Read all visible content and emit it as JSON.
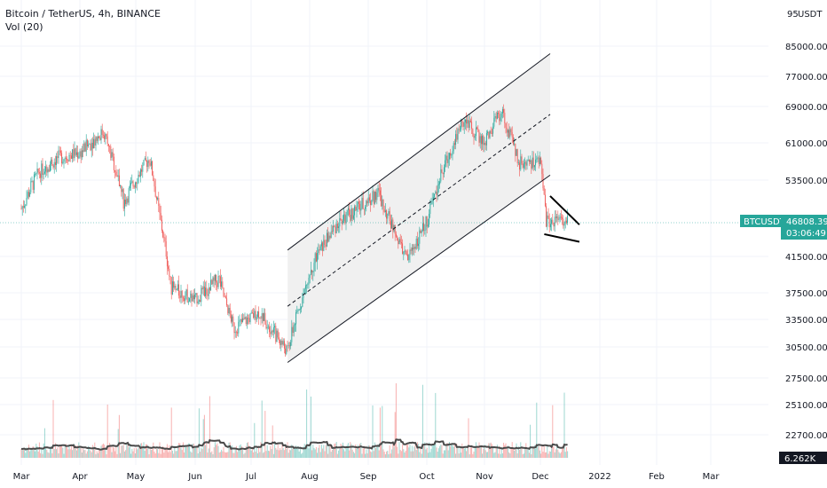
{
  "header": {
    "symbol_line": "Bitcoin / TetherUS, 4h, BINANCE",
    "indicator_line": "Vol (20)"
  },
  "axis": {
    "currency_label": "USDT",
    "currency_prefix": "95",
    "price_ticks": [
      "85000.00",
      "77000.00",
      "69000.00",
      "61000.00",
      "53500.00",
      "41500.00",
      "37500.00",
      "33500.00",
      "30500.00",
      "27500.00",
      "25100.00",
      "22700.00"
    ],
    "time_ticks": [
      "Mar",
      "Apr",
      "May",
      "Jun",
      "Jul",
      "Aug",
      "Sep",
      "Oct",
      "Nov",
      "Dec",
      "2022",
      "Feb",
      "Mar"
    ]
  },
  "badges": {
    "symbol": "BTCUSDT",
    "price": "46808.39",
    "countdown": "03:06:49",
    "volume": "6.262K"
  },
  "colors": {
    "up": "#26a69a",
    "down": "#ef5350",
    "badge": "#26a69a",
    "channel_fill": "#f0f0f0",
    "volume_ma": "#4a4a4a"
  },
  "chart_data": {
    "type": "candlestick",
    "symbol": "BTCUSDT",
    "timeframe": "4h",
    "exchange": "BINANCE",
    "last_price": 46808.39,
    "last_volume": "6.262K",
    "ylim": [
      20000,
      95000
    ],
    "x_categories": [
      "Mar",
      "Apr",
      "May",
      "Jun",
      "Jul",
      "Aug",
      "Sep",
      "Oct",
      "Nov",
      "Dec",
      "2022",
      "Feb",
      "Mar"
    ],
    "close_path": [
      {
        "t": "Mar 1",
        "price": 49000
      },
      {
        "t": "Mar 10",
        "price": 55000
      },
      {
        "t": "Mar 20",
        "price": 58000
      },
      {
        "t": "Apr 1",
        "price": 59000
      },
      {
        "t": "Apr 14",
        "price": 63500
      },
      {
        "t": "Apr 25",
        "price": 50000
      },
      {
        "t": "May 8",
        "price": 58000
      },
      {
        "t": "May 12",
        "price": 50000
      },
      {
        "t": "May 19",
        "price": 38000
      },
      {
        "t": "Jun 1",
        "price": 36500
      },
      {
        "t": "Jun 14",
        "price": 39000
      },
      {
        "t": "Jun 22",
        "price": 32500
      },
      {
        "t": "Jul 5",
        "price": 34500
      },
      {
        "t": "Jul 20",
        "price": 30000
      },
      {
        "t": "Aug 1",
        "price": 40000
      },
      {
        "t": "Aug 15",
        "price": 46500
      },
      {
        "t": "Sep 6",
        "price": 51500
      },
      {
        "t": "Sep 21",
        "price": 41000
      },
      {
        "t": "Oct 1",
        "price": 47000
      },
      {
        "t": "Oct 20",
        "price": 66000
      },
      {
        "t": "Nov 1",
        "price": 61000
      },
      {
        "t": "Nov 10",
        "price": 68000
      },
      {
        "t": "Nov 20",
        "price": 57000
      },
      {
        "t": "Dec 1",
        "price": 57000
      },
      {
        "t": "Dec 4",
        "price": 47000
      },
      {
        "t": "Dec 15",
        "price": 46808
      }
    ],
    "drawings": [
      {
        "type": "parallel_channel",
        "start": {
          "t": "Jul 20",
          "upper": 42500,
          "lower": 29000
        },
        "end": {
          "t": "Dec 6",
          "upper": 83000,
          "lower": 54500
        },
        "midline": "dashed"
      },
      {
        "type": "trendline",
        "from": {
          "t": "Dec 6",
          "price": 51000
        },
        "to": {
          "t": "Dec 21",
          "price": 46500
        }
      },
      {
        "type": "trendline",
        "from": {
          "t": "Dec 3",
          "price": 45000
        },
        "to": {
          "t": "Dec 21",
          "price": 43800
        }
      }
    ],
    "volume_indicator": {
      "name": "Vol (20)",
      "last": "6.262K"
    }
  }
}
